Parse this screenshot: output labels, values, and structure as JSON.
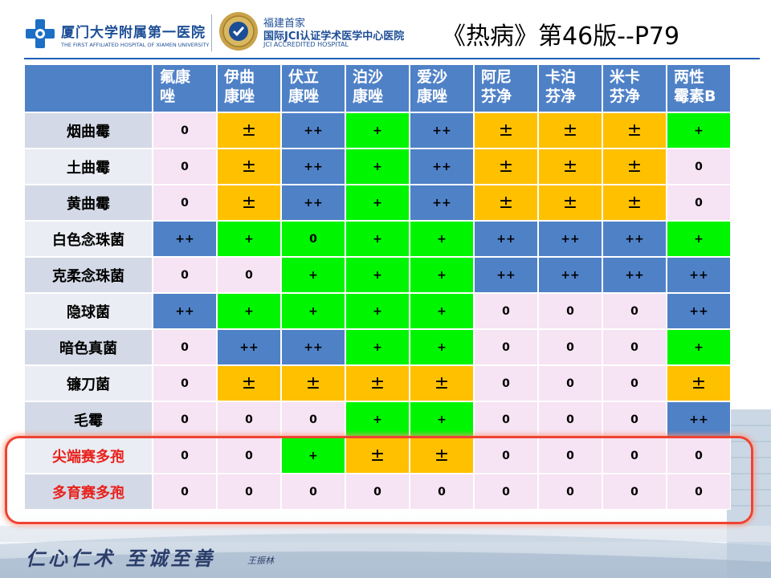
{
  "header": {
    "logo1": {
      "name": "厦门大学附属第一医院",
      "subtitle": "THE FIRST AFFILIATED HOSPITAL OF XIAMEN UNIVERSITY"
    },
    "logo2": {
      "line1": "福建首家",
      "line2": "国际JCI认证学术医学中心医院",
      "line3": "JCI ACCREDITED HOSPITAL"
    },
    "title": "《热病》第46版--P79"
  },
  "table": {
    "columns": [
      "氟康\n唑",
      "伊曲\n康唑",
      "伏立\n康唑",
      "泊沙\n康唑",
      "爱沙\n康唑",
      "阿尼\n芬净",
      "卡泊\n芬净",
      "米卡\n芬净",
      "两性\n霉素B"
    ],
    "rows": [
      {
        "name": "烟曲霉",
        "values": [
          "0",
          "±",
          "++",
          "+",
          "++",
          "±",
          "±",
          "±",
          "+"
        ],
        "colors": [
          "pink",
          "orange",
          "blue",
          "green",
          "blue",
          "orange",
          "orange",
          "orange",
          "green"
        ]
      },
      {
        "name": "土曲霉",
        "values": [
          "0",
          "±",
          "++",
          "+",
          "++",
          "±",
          "±",
          "±",
          "0"
        ],
        "colors": [
          "pink",
          "orange",
          "blue",
          "green",
          "blue",
          "orange",
          "orange",
          "orange",
          "pink"
        ]
      },
      {
        "name": "黄曲霉",
        "values": [
          "0",
          "±",
          "++",
          "+",
          "++",
          "±",
          "±",
          "±",
          "0"
        ],
        "colors": [
          "pink",
          "orange",
          "blue",
          "green",
          "blue",
          "orange",
          "orange",
          "orange",
          "pink"
        ]
      },
      {
        "name": "白色念珠菌",
        "values": [
          "++",
          "+",
          "0",
          "+",
          "+",
          "++",
          "++",
          "++",
          "+"
        ],
        "colors": [
          "blue",
          "green",
          "green",
          "green",
          "green",
          "blue",
          "blue",
          "blue",
          "green"
        ]
      },
      {
        "name": "克柔念珠菌",
        "values": [
          "0",
          "0",
          "+",
          "+",
          "+",
          "++",
          "++",
          "++",
          "++"
        ],
        "colors": [
          "pink",
          "pink",
          "green",
          "green",
          "green",
          "blue",
          "blue",
          "blue",
          "blue"
        ]
      },
      {
        "name": "隐球菌",
        "values": [
          "++",
          "+",
          "+",
          "+",
          "+",
          "0",
          "0",
          "0",
          "++"
        ],
        "colors": [
          "blue",
          "green",
          "green",
          "green",
          "green",
          "pink",
          "pink",
          "pink",
          "blue"
        ]
      },
      {
        "name": "暗色真菌",
        "values": [
          "0",
          "++",
          "++",
          "+",
          "+",
          "0",
          "0",
          "0",
          "+"
        ],
        "colors": [
          "pink",
          "blue",
          "blue",
          "green",
          "green",
          "pink",
          "pink",
          "pink",
          "green"
        ]
      },
      {
        "name": "镰刀菌",
        "values": [
          "0",
          "±",
          "±",
          "±",
          "±",
          "0",
          "0",
          "0",
          "±"
        ],
        "colors": [
          "pink",
          "orange",
          "orange",
          "orange",
          "orange",
          "pink",
          "pink",
          "pink",
          "orange"
        ]
      },
      {
        "name": "毛霉",
        "values": [
          "0",
          "0",
          "0",
          "+",
          "+",
          "0",
          "0",
          "0",
          "++"
        ],
        "colors": [
          "pink",
          "pink",
          "pink",
          "green",
          "green",
          "pink",
          "pink",
          "pink",
          "blue"
        ]
      },
      {
        "name": "尖端赛多孢",
        "values": [
          "0",
          "0",
          "+",
          "±",
          "±",
          "0",
          "0",
          "0",
          "0"
        ],
        "colors": [
          "pink",
          "pink",
          "green",
          "orange",
          "orange",
          "pink",
          "pink",
          "pink",
          "pink"
        ],
        "highlight": true
      },
      {
        "name": "多育赛多孢",
        "values": [
          "0",
          "0",
          "0",
          "0",
          "0",
          "0",
          "0",
          "0",
          "0"
        ],
        "colors": [
          "pink",
          "pink",
          "pink",
          "pink",
          "pink",
          "pink",
          "pink",
          "pink",
          "pink"
        ],
        "highlight": true
      }
    ]
  },
  "footer": {
    "slogan": "仁心仁术  至诚至善",
    "signature": "王振林"
  }
}
